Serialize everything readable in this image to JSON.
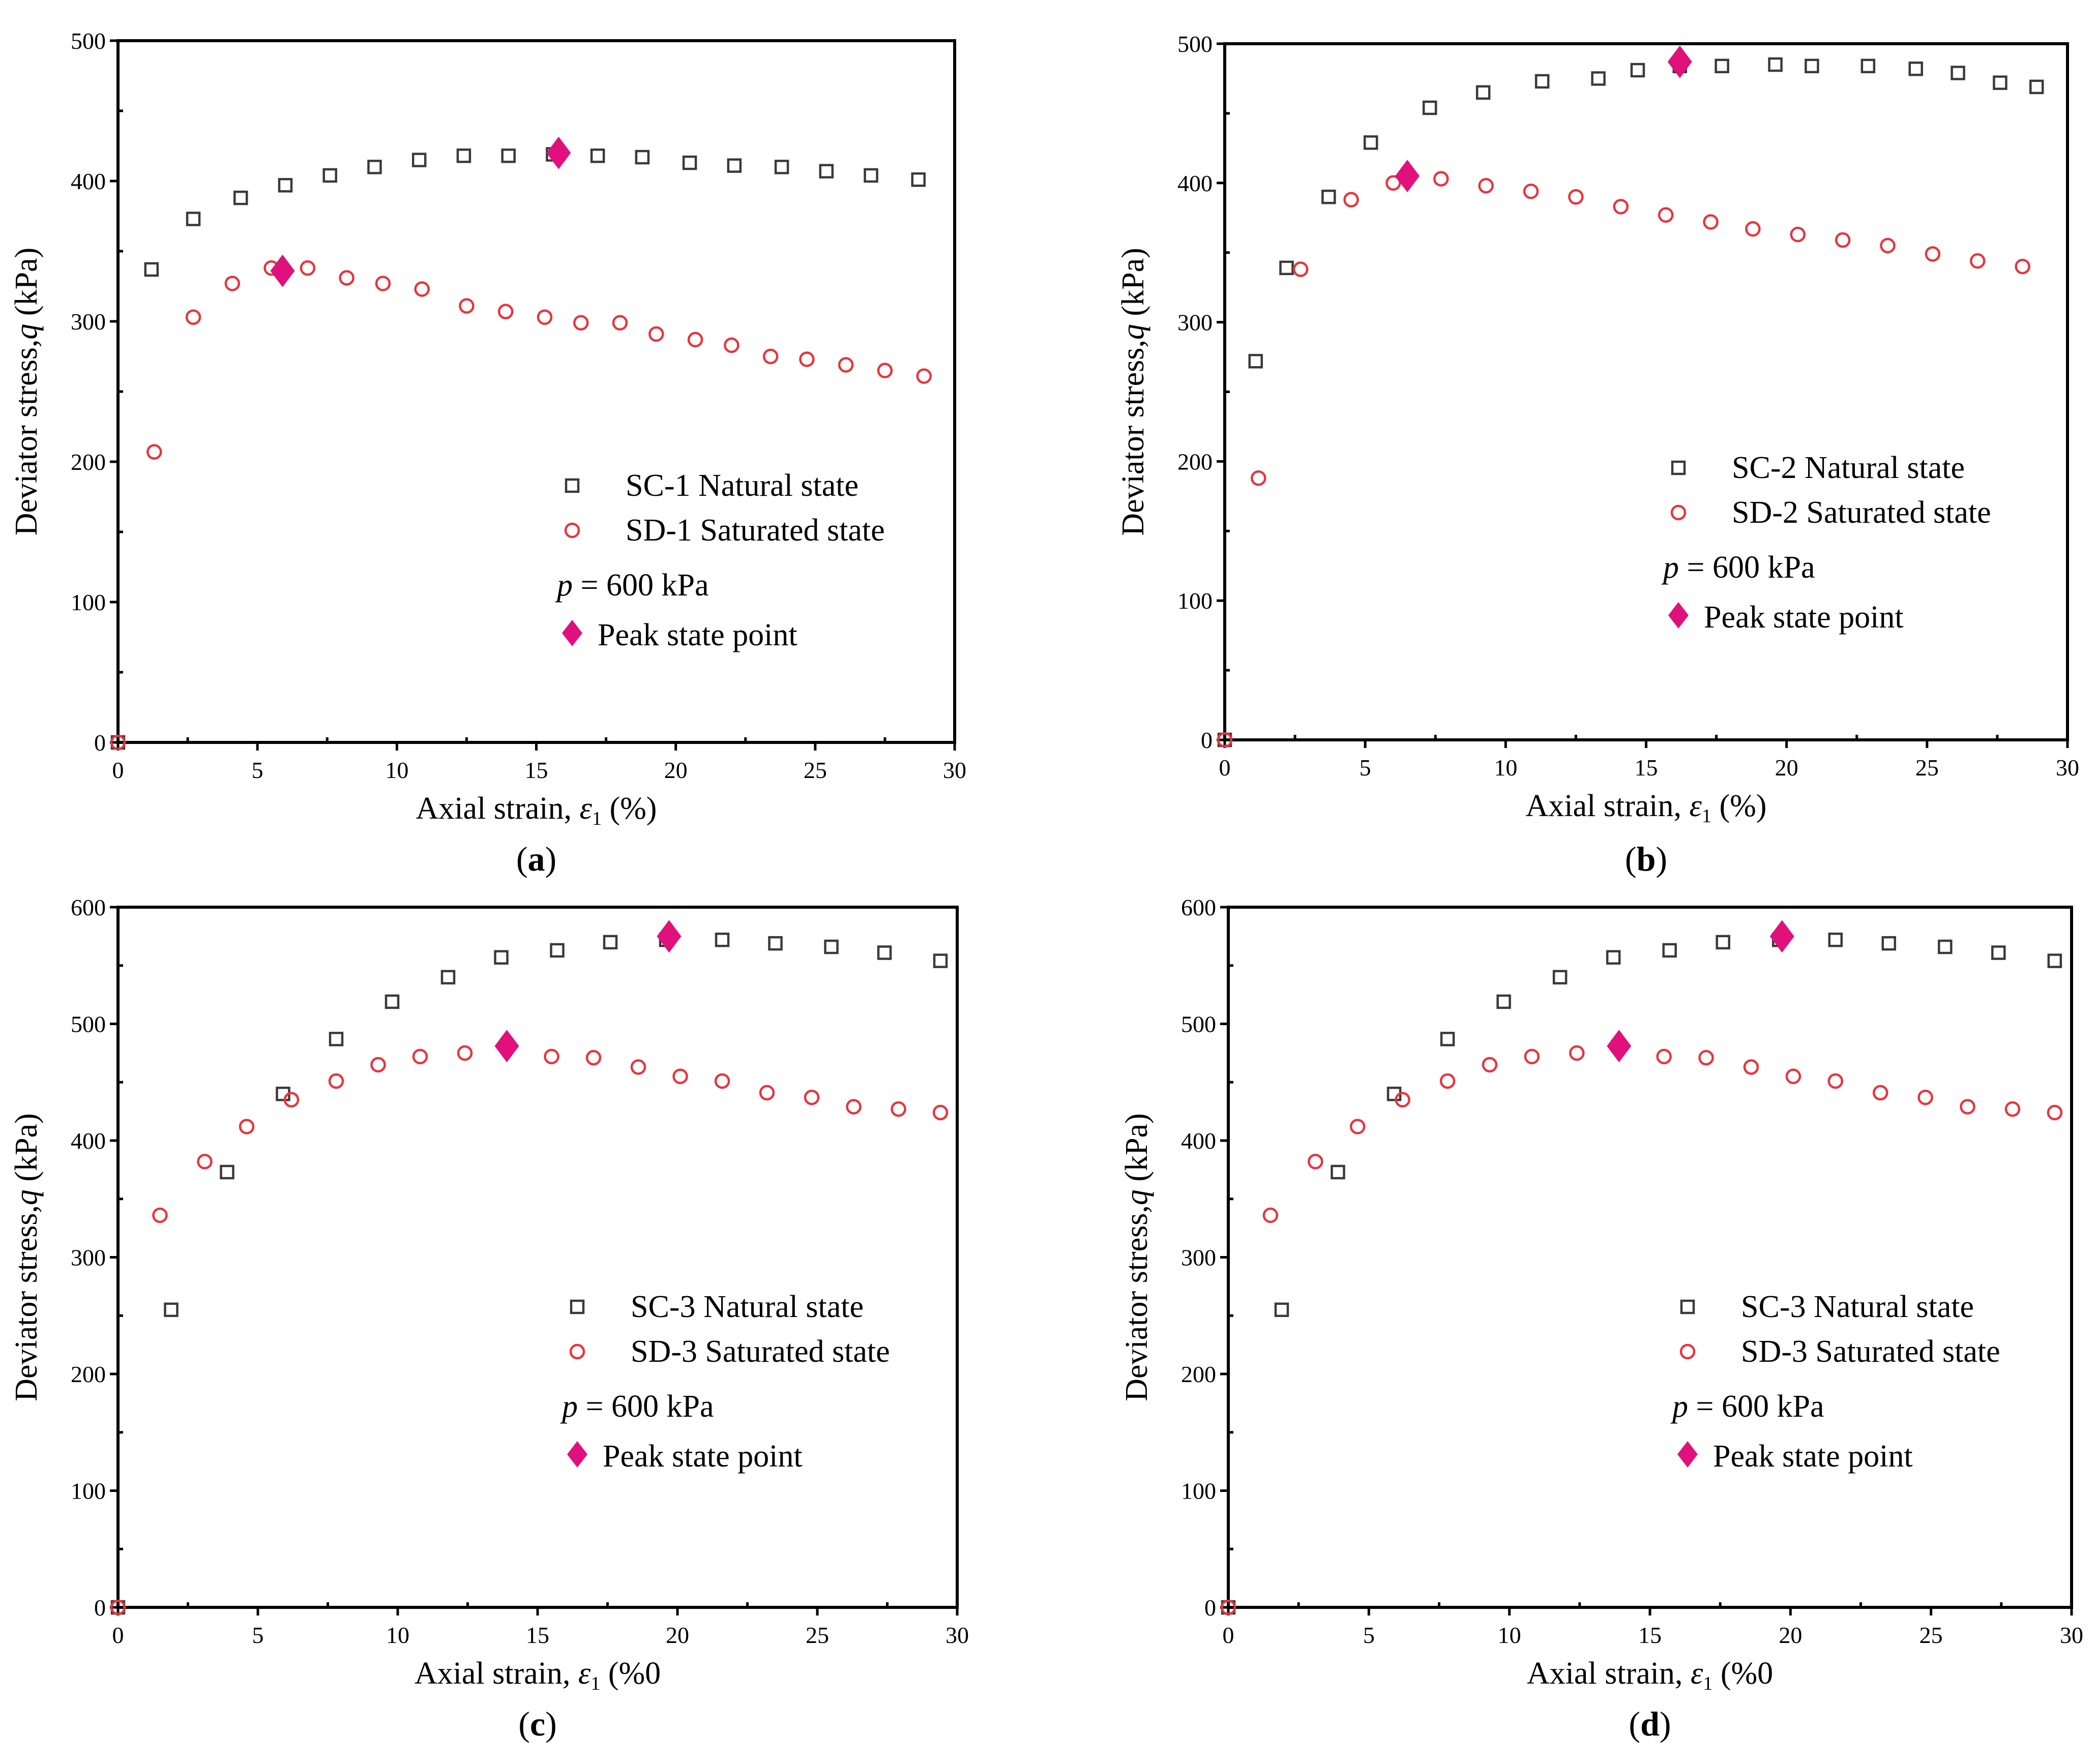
{
  "chart_data": [
    {
      "type": "scatter",
      "panel_label": "a",
      "xlabel_prefix": "Axial strain, ",
      "xlabel_symbol": "ε",
      "xlabel_subscript": "1",
      "xlabel_unit": " (%)",
      "ylabel_prefix": "Deviator stress,",
      "ylabel_symbol": "q",
      "ylabel_unit": " (kPa)",
      "xlim": [
        0,
        30
      ],
      "ylim": [
        0,
        500
      ],
      "xticks": [
        0,
        5,
        10,
        15,
        20,
        25,
        30
      ],
      "yticks": [
        0,
        100,
        200,
        300,
        400,
        500
      ],
      "legend_position": "lower-right",
      "series": [
        {
          "name": "SC-1 Natural state",
          "marker": "square",
          "color": "#3a3a3a",
          "x": [
            0,
            1.2,
            2.7,
            4.4,
            6.0,
            7.6,
            9.2,
            10.8,
            12.4,
            14.0,
            15.6,
            17.2,
            18.8,
            20.5,
            22.1,
            23.8,
            25.4,
            27.0,
            28.7
          ],
          "y": [
            0,
            337,
            373,
            388,
            397,
            404,
            410,
            415,
            418,
            418,
            419,
            418,
            417,
            413,
            411,
            410,
            407,
            404,
            401
          ]
        },
        {
          "name": "SD-1 Saturated state",
          "marker": "circle",
          "color": "#e8343c",
          "x": [
            0,
            1.3,
            2.7,
            4.1,
            5.5,
            6.8,
            8.2,
            9.5,
            10.9,
            12.5,
            13.9,
            15.3,
            16.6,
            18.0,
            19.3,
            20.7,
            22.0,
            23.4,
            24.7,
            26.1,
            27.5,
            28.9
          ],
          "y": [
            0,
            207,
            303,
            327,
            338,
            338,
            331,
            327,
            323,
            311,
            307,
            303,
            299,
            299,
            291,
            287,
            283,
            275,
            273,
            269,
            265,
            261
          ]
        }
      ],
      "peak_points": {
        "name": "Peak state point",
        "color": "#e0107c",
        "x": [
          5.9,
          15.8
        ],
        "y": [
          336,
          420
        ]
      },
      "annotation": {
        "symbol": "p",
        "text": " = 600 kPa"
      }
    },
    {
      "type": "scatter",
      "panel_label": "b",
      "xlabel_prefix": "Axial strain, ",
      "xlabel_symbol": "ε",
      "xlabel_subscript": "1",
      "xlabel_unit": " (%)",
      "ylabel_prefix": "Deviator stress,",
      "ylabel_symbol": "q",
      "ylabel_unit": " (kPa)",
      "xlim": [
        0,
        30
      ],
      "ylim": [
        0,
        500
      ],
      "xticks": [
        0,
        5,
        10,
        15,
        20,
        25,
        30
      ],
      "yticks": [
        0,
        100,
        200,
        300,
        400,
        500
      ],
      "legend_position": "lower-right",
      "series": [
        {
          "name": "SC-2 Natural state",
          "marker": "square",
          "color": "#3a3a3a",
          "x": [
            0,
            1.1,
            2.2,
            3.7,
            5.2,
            7.3,
            9.2,
            11.3,
            13.3,
            14.7,
            16.2,
            17.7,
            19.6,
            20.9,
            22.9,
            24.6,
            26.1,
            27.6,
            28.9
          ],
          "y": [
            0,
            272,
            339,
            390,
            429,
            454,
            465,
            473,
            475,
            481,
            484,
            484,
            485,
            484,
            484,
            482,
            479,
            472,
            469
          ]
        },
        {
          "name": "SD-2 Saturated state",
          "marker": "circle",
          "color": "#e8343c",
          "x": [
            0,
            1.2,
            2.7,
            4.5,
            6.0,
            7.7,
            9.3,
            10.9,
            12.5,
            14.1,
            15.7,
            17.3,
            18.8,
            20.4,
            22.0,
            23.6,
            25.2,
            26.8,
            28.4
          ],
          "y": [
            0,
            188,
            338,
            388,
            400,
            403,
            398,
            394,
            390,
            383,
            377,
            372,
            367,
            363,
            359,
            355,
            349,
            344,
            340
          ]
        }
      ],
      "peak_points": {
        "name": "Peak state point",
        "color": "#e0107c",
        "x": [
          6.5,
          16.2
        ],
        "y": [
          405,
          487
        ]
      },
      "annotation": {
        "symbol": "p",
        "text": " = 600 kPa"
      }
    },
    {
      "type": "scatter",
      "panel_label": "c",
      "xlabel_prefix": "Axial strain, ",
      "xlabel_symbol": "ε",
      "xlabel_subscript": "1",
      "xlabel_unit": " (%0",
      "ylabel_prefix": "Deviator stress,",
      "ylabel_symbol": "q",
      "ylabel_unit": " (kPa)",
      "xlim": [
        0,
        30
      ],
      "ylim": [
        0,
        600
      ],
      "xticks": [
        0,
        5,
        10,
        15,
        20,
        25,
        30
      ],
      "yticks": [
        0,
        100,
        200,
        300,
        400,
        500,
        600
      ],
      "legend_position": "lower-right",
      "series": [
        {
          "name": "SC-3 Natural state",
          "marker": "square",
          "color": "#3a3a3a",
          "x": [
            0,
            1.9,
            3.9,
            5.9,
            7.8,
            9.8,
            11.8,
            13.7,
            15.7,
            17.6,
            19.6,
            21.6,
            23.5,
            25.5,
            27.4,
            29.4
          ],
          "y": [
            0,
            255,
            373,
            440,
            487,
            519,
            540,
            557,
            563,
            570,
            572,
            572,
            569,
            566,
            561,
            554
          ]
        },
        {
          "name": "SD-3 Saturated state",
          "marker": "circle",
          "color": "#e8343c",
          "x": [
            0,
            1.5,
            3.1,
            4.6,
            6.2,
            7.8,
            9.3,
            10.8,
            12.4,
            13.9,
            15.5,
            17.0,
            18.6,
            20.1,
            21.6,
            23.2,
            24.8,
            26.3,
            27.9,
            29.4
          ],
          "y": [
            0,
            336,
            382,
            412,
            435,
            451,
            465,
            472,
            475,
            481,
            472,
            471,
            463,
            455,
            451,
            441,
            437,
            429,
            427,
            424
          ]
        }
      ],
      "peak_points": {
        "name": "Peak state point",
        "color": "#e0107c",
        "x": [
          13.9,
          19.7
        ],
        "y": [
          481,
          575
        ]
      },
      "annotation": {
        "symbol": "p",
        "text": " = 600 kPa"
      }
    },
    {
      "type": "scatter",
      "panel_label": "d",
      "xlabel_prefix": "Axial strain, ",
      "xlabel_symbol": "ε",
      "xlabel_subscript": "1",
      "xlabel_unit": " (%0",
      "ylabel_prefix": "Deviator stress,",
      "ylabel_symbol": "q",
      "ylabel_unit": " (kPa)",
      "xlim": [
        0,
        30
      ],
      "ylim": [
        0,
        600
      ],
      "xticks": [
        0,
        5,
        10,
        15,
        20,
        25,
        30
      ],
      "yticks": [
        0,
        100,
        200,
        300,
        400,
        500,
        600
      ],
      "legend_position": "lower-right",
      "series": [
        {
          "name": "SC-3 Natural state",
          "marker": "square",
          "color": "#3a3a3a",
          "x": [
            0,
            1.9,
            3.9,
            5.9,
            7.8,
            9.8,
            11.8,
            13.7,
            15.7,
            17.6,
            19.6,
            21.6,
            23.5,
            25.5,
            27.4,
            29.4
          ],
          "y": [
            0,
            255,
            373,
            440,
            487,
            519,
            540,
            557,
            563,
            570,
            572,
            572,
            569,
            566,
            561,
            554
          ]
        },
        {
          "name": "SD-3 Saturated state",
          "marker": "circle",
          "color": "#e8343c",
          "x": [
            0,
            1.5,
            3.1,
            4.6,
            6.2,
            7.8,
            9.3,
            10.8,
            12.4,
            13.9,
            15.5,
            17.0,
            18.6,
            20.1,
            21.6,
            23.2,
            24.8,
            26.3,
            27.9,
            29.4
          ],
          "y": [
            0,
            336,
            382,
            412,
            435,
            451,
            465,
            472,
            475,
            481,
            472,
            471,
            463,
            455,
            451,
            441,
            437,
            429,
            427,
            424
          ]
        }
      ],
      "peak_points": {
        "name": "Peak state point",
        "color": "#e0107c",
        "x": [
          13.9,
          19.7
        ],
        "y": [
          481,
          575
        ]
      },
      "annotation": {
        "symbol": "p",
        "text": " = 600 kPa"
      }
    }
  ]
}
